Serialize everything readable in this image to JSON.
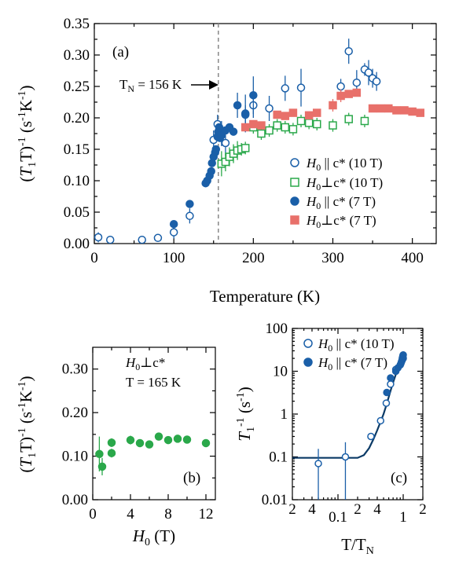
{
  "colors": {
    "blue": "#1a5fa8",
    "green": "#2aa84a",
    "salmon": "#e8706a",
    "fit": "#0b3a66",
    "dashed": "#888888"
  },
  "chart_data": [
    {
      "panel": "a",
      "type": "scatter",
      "panel_label": "(a)",
      "xlabel": "Temperature (K)",
      "ylabel": "(T1T)-1 (s-1K-1)",
      "xlim": [
        0,
        430
      ],
      "ylim": [
        0,
        0.35
      ],
      "xticks": [
        "0",
        "100",
        "200",
        "300",
        "400"
      ],
      "yticks": [
        "0.00",
        "0.05",
        "0.10",
        "0.15",
        "0.20",
        "0.25",
        "0.30",
        "0.35"
      ],
      "annotation": {
        "text": "TN = 156 K",
        "x": 156
      },
      "series": [
        {
          "name": "H0 || c* (10 T)",
          "marker": "open-circle",
          "color": "#1a5fa8",
          "points": [
            [
              5,
              0.01,
              0.008
            ],
            [
              20,
              0.006,
              0.0
            ],
            [
              60,
              0.006,
              0.0
            ],
            [
              80,
              0.009,
              0.0
            ],
            [
              100,
              0.018,
              0.01
            ],
            [
              120,
              0.044,
              0.012
            ],
            [
              150,
              0.165,
              0.015
            ],
            [
              155,
              0.19,
              0.015
            ],
            [
              160,
              0.175,
              0.02
            ],
            [
              165,
              0.16,
              0.02
            ],
            [
              190,
              0.205,
              0.015
            ],
            [
              200,
              0.22,
              0.02
            ],
            [
              220,
              0.215,
              0.02
            ],
            [
              240,
              0.247,
              0.02
            ],
            [
              260,
              0.248,
              0.03
            ],
            [
              310,
              0.25,
              0.012
            ],
            [
              320,
              0.306,
              0.02
            ],
            [
              330,
              0.256,
              0.02
            ],
            [
              340,
              0.277,
              0.01
            ],
            [
              345,
              0.272,
              0.02
            ],
            [
              350,
              0.263,
              0.015
            ],
            [
              355,
              0.258,
              0.015
            ]
          ]
        },
        {
          "name": "H0⊥c* (10 T)",
          "marker": "open-square",
          "color": "#2aa84a",
          "points": [
            [
              160,
              0.127,
              0.02
            ],
            [
              165,
              0.13,
              0.015
            ],
            [
              170,
              0.138,
              0.015
            ],
            [
              175,
              0.143,
              0.015
            ],
            [
              180,
              0.148,
              0.015
            ],
            [
              185,
              0.15,
              0.01
            ],
            [
              190,
              0.152,
              0.01
            ],
            [
              200,
              0.185,
              0.01
            ],
            [
              210,
              0.175,
              0.01
            ],
            [
              220,
              0.18,
              0.01
            ],
            [
              230,
              0.188,
              0.01
            ],
            [
              240,
              0.185,
              0.01
            ],
            [
              250,
              0.182,
              0.01
            ],
            [
              260,
              0.195,
              0.01
            ],
            [
              270,
              0.192,
              0.01
            ],
            [
              280,
              0.19,
              0.01
            ],
            [
              300,
              0.188,
              0.01
            ],
            [
              320,
              0.198,
              0.01
            ],
            [
              340,
              0.195,
              0.01
            ]
          ]
        },
        {
          "name": "H0 || c* (7 T)",
          "marker": "filled-circle",
          "color": "#1a5fa8",
          "points": [
            [
              100,
              0.031,
              0.0
            ],
            [
              120,
              0.063,
              0.0
            ],
            [
              140,
              0.096,
              0.0
            ],
            [
              142,
              0.1,
              0.0
            ],
            [
              145,
              0.108,
              0.0
            ],
            [
              147,
              0.115,
              0.0
            ],
            [
              148,
              0.128,
              0.0
            ],
            [
              150,
              0.138,
              0.0
            ],
            [
              152,
              0.145,
              0.0
            ],
            [
              153,
              0.15,
              0.0
            ],
            [
              155,
              0.17,
              0.0
            ],
            [
              156,
              0.178,
              0.0
            ],
            [
              157,
              0.185,
              0.0
            ],
            [
              158,
              0.168,
              0.0
            ],
            [
              160,
              0.172,
              0.0
            ],
            [
              165,
              0.18,
              0.0
            ],
            [
              170,
              0.185,
              0.0
            ],
            [
              175,
              0.178,
              0.0
            ],
            [
              180,
              0.22,
              0.02
            ],
            [
              190,
              0.207,
              0.03
            ],
            [
              200,
              0.236,
              0.03
            ]
          ]
        },
        {
          "name": "H0⊥c* (7 T)",
          "marker": "filled-square",
          "color": "#e8706a",
          "points": [
            [
              190,
              0.185,
              0.005
            ],
            [
              200,
              0.19,
              0.005
            ],
            [
              210,
              0.188,
              0.005
            ],
            [
              230,
              0.205,
              0.005
            ],
            [
              240,
              0.203,
              0.005
            ],
            [
              250,
              0.208,
              0.005
            ],
            [
              270,
              0.204,
              0.005
            ],
            [
              280,
              0.208,
              0.005
            ],
            [
              300,
              0.22,
              0.01
            ],
            [
              310,
              0.235,
              0.01
            ],
            [
              320,
              0.238,
              0.005
            ],
            [
              330,
              0.24,
              0.005
            ],
            [
              350,
              0.215,
              0.005
            ],
            [
              360,
              0.215,
              0.005
            ],
            [
              370,
              0.215,
              0.005
            ],
            [
              380,
              0.212,
              0.005
            ],
            [
              390,
              0.212,
              0.005
            ],
            [
              400,
              0.21,
              0.005
            ],
            [
              410,
              0.208,
              0.005
            ]
          ]
        }
      ]
    },
    {
      "panel": "b",
      "type": "scatter",
      "panel_label": "(b)",
      "xlabel": "H0 (T)",
      "ylabel": "(T1T)-1 (s-1K-1)",
      "xlim": [
        0,
        13
      ],
      "ylim": [
        0,
        0.35
      ],
      "xticks": [
        "0",
        "4",
        "8",
        "12"
      ],
      "yticks": [
        "0.00",
        "0.10",
        "0.20",
        "0.30"
      ],
      "annotation_lines": [
        "H0⊥c*",
        "T = 165 K"
      ],
      "series": [
        {
          "name": "",
          "marker": "filled-circle",
          "color": "#2aa84a",
          "points": [
            [
              0.7,
              0.105,
              0.04
            ],
            [
              1.0,
              0.076,
              0.02
            ],
            [
              2.0,
              0.107,
              0.01
            ],
            [
              2.0,
              0.131,
              0.01
            ],
            [
              4.0,
              0.137,
              0.01
            ],
            [
              5.0,
              0.13,
              0.0
            ],
            [
              6.0,
              0.127,
              0.0
            ],
            [
              7.0,
              0.145,
              0.0
            ],
            [
              8.0,
              0.137,
              0.0
            ],
            [
              9.0,
              0.14,
              0.0
            ],
            [
              10.0,
              0.138,
              0.0
            ],
            [
              12.0,
              0.13,
              0.0
            ]
          ]
        }
      ]
    },
    {
      "panel": "c",
      "type": "scatter",
      "panel_label": "(c)",
      "xscale": "log",
      "yscale": "log",
      "xlabel": "T/TN",
      "ylabel": "T1-1 (s-1)",
      "xlim": [
        0.02,
        2
      ],
      "ylim": [
        0.01,
        100
      ],
      "xticks": [
        "2",
        "4",
        "0.1",
        "2",
        "4",
        "1",
        "2"
      ],
      "yticks": [
        "0.01",
        "0.1",
        "1",
        "10",
        "100"
      ],
      "series": [
        {
          "name": "H0 || c* (10 T)",
          "marker": "open-circle",
          "color": "#1a5fa8",
          "points": [
            [
              0.05,
              0.07
            ],
            [
              0.13,
              0.1
            ],
            [
              0.32,
              0.3
            ],
            [
              0.45,
              0.7
            ],
            [
              0.55,
              1.8
            ],
            [
              0.64,
              5.0
            ],
            [
              0.77,
              11.0
            ],
            [
              0.96,
              18.0
            ],
            [
              1.0,
              20.0
            ]
          ]
        },
        {
          "name": "H0 || c* (7 T)",
          "marker": "filled-circle",
          "color": "#1a5fa8",
          "points": [
            [
              0.56,
              3.2
            ],
            [
              0.64,
              7.0
            ],
            [
              0.77,
              10.0
            ],
            [
              0.83,
              12.0
            ],
            [
              0.9,
              14.0
            ],
            [
              0.92,
              15.0
            ],
            [
              0.94,
              16.5
            ],
            [
              0.96,
              18.0
            ],
            [
              0.97,
              20.0
            ],
            [
              0.98,
              21.5
            ],
            [
              0.99,
              23.0
            ],
            [
              1.0,
              24.0
            ]
          ]
        }
      ],
      "fit_curve": [
        [
          0.02,
          0.095
        ],
        [
          0.1,
          0.095
        ],
        [
          0.2,
          0.095
        ],
        [
          0.25,
          0.11
        ],
        [
          0.3,
          0.16
        ],
        [
          0.35,
          0.26
        ],
        [
          0.4,
          0.42
        ],
        [
          0.45,
          0.66
        ],
        [
          0.5,
          1.0
        ],
        [
          0.55,
          1.6
        ],
        [
          0.6,
          2.5
        ],
        [
          0.65,
          3.8
        ],
        [
          0.7,
          5.5
        ],
        [
          0.8,
          10.0
        ],
        [
          0.9,
          16.0
        ],
        [
          1.0,
          24.0
        ]
      ]
    }
  ]
}
